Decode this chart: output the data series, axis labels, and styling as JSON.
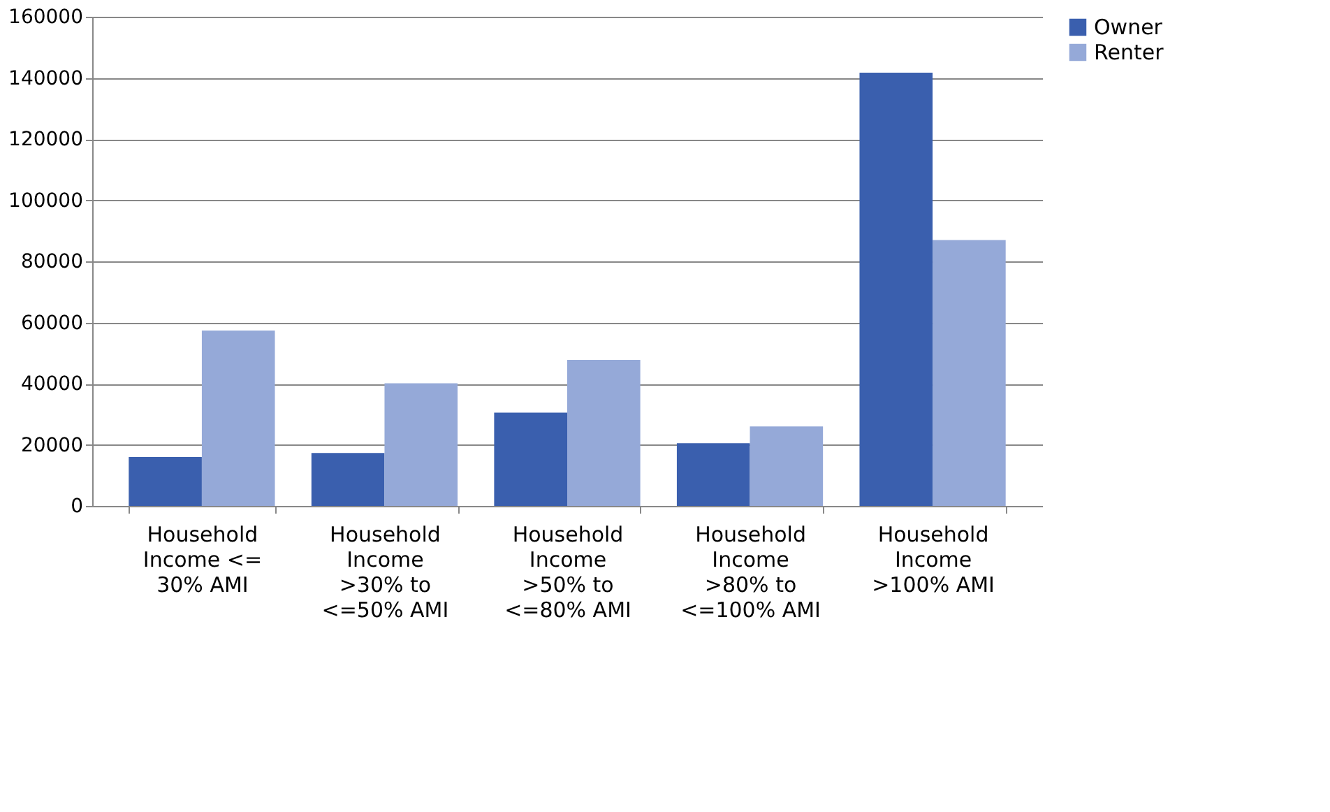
{
  "chart_data": {
    "type": "bar",
    "categories": [
      "Household Income <= 30% AMI",
      "Household Income >30% to <=50% AMI",
      "Household Income >50% to <=80% AMI",
      "Household Income >80% to <=100% AMI",
      "Household Income >100% AMI"
    ],
    "series": [
      {
        "name": "Owner",
        "color": "#3a5fae",
        "values": [
          16000,
          17300,
          30500,
          20500,
          141700
        ]
      },
      {
        "name": "Renter",
        "color": "#95a9d8",
        "values": [
          57400,
          40100,
          47800,
          26000,
          87000
        ]
      }
    ],
    "ylim": [
      0,
      160000
    ],
    "yticks": [
      0,
      20000,
      40000,
      60000,
      80000,
      100000,
      120000,
      140000,
      160000
    ],
    "grid": "y",
    "legend": "right"
  }
}
